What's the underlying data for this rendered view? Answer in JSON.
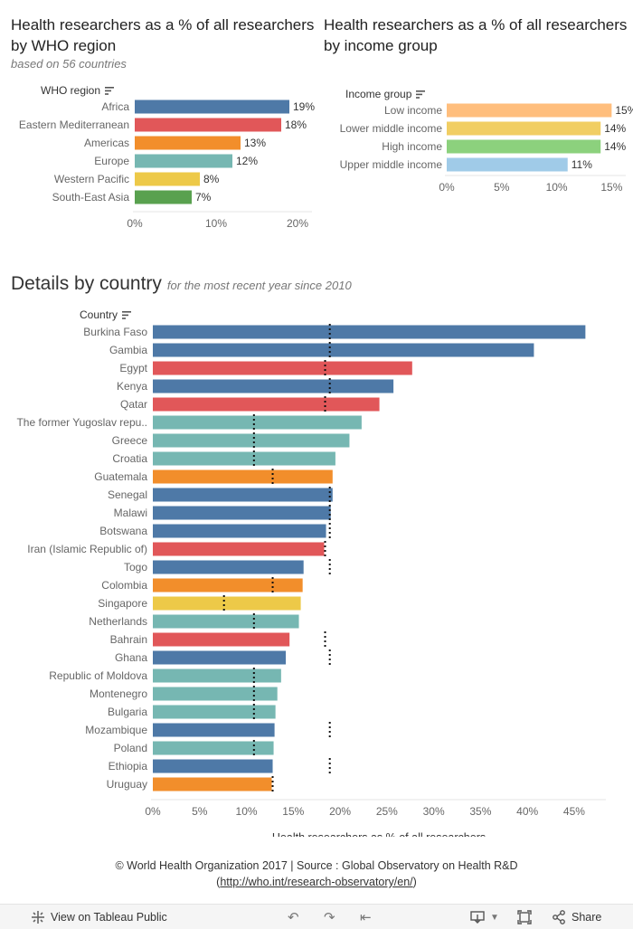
{
  "region_panel": {
    "title_line1": "Health researchers as a % of all researchers",
    "title_line2": "by WHO region",
    "subtitle": "based on 56 countries",
    "header": "WHO region"
  },
  "income_panel": {
    "title_line1": "Health researchers as a % of all researchers",
    "title_line2": "by income group",
    "header": "Income group"
  },
  "country_panel": {
    "title": "Details by country",
    "subtitle": "for the most recent year since 2010",
    "header": "Country"
  },
  "footer": {
    "line1": "© World Health Organization 2017 | Source : Global Observatory on Health R&D",
    "link": "http://who.int/research-observatory/en/",
    "open_paren": "(",
    "close_paren": ")"
  },
  "toolbar": {
    "view_label": "View on Tableau Public",
    "share_label": "Share"
  },
  "colors": {
    "Africa": "#4e79a7",
    "Eastern Mediterranean": "#e15759",
    "Americas": "#f28e2b",
    "Europe": "#76b7b2",
    "Western Pacific": "#edc948",
    "South-East Asia": "#59a14f",
    "Low income": "#ffbe7d",
    "Lower middle income": "#f1ce63",
    "High income": "#8cd17d",
    "Upper middle income": "#a0cbe8"
  },
  "chart_data": [
    {
      "type": "bar",
      "orientation": "horizontal",
      "categories": [
        "Africa",
        "Eastern Mediterranean",
        "Americas",
        "Europe",
        "Western Pacific",
        "South-East Asia"
      ],
      "values": [
        19,
        18,
        13,
        12,
        8,
        7
      ],
      "value_labels": [
        "19%",
        "18%",
        "13%",
        "12%",
        "8%",
        "7%"
      ],
      "xlim": [
        0,
        26
      ],
      "xticks": [
        0,
        10,
        20
      ],
      "xtick_labels": [
        "0%",
        "10%",
        "20%"
      ],
      "grid": false
    },
    {
      "type": "bar",
      "orientation": "horizontal",
      "categories": [
        "Low income",
        "Lower middle income",
        "High income",
        "Upper middle income"
      ],
      "values": [
        15,
        14,
        14,
        11
      ],
      "value_labels": [
        "15%",
        "14%",
        "14%",
        "11%"
      ],
      "xlim": [
        0,
        19
      ],
      "xticks": [
        0,
        5,
        10,
        15
      ],
      "xtick_labels": [
        "0%",
        "5%",
        "10%",
        "15%"
      ],
      "grid": false
    },
    {
      "type": "bar",
      "orientation": "horizontal",
      "xlabel": "Health researchers  as % of all researchers",
      "xlim": [
        0,
        48
      ],
      "xticks": [
        0,
        5,
        10,
        15,
        20,
        25,
        30,
        35,
        40,
        45
      ],
      "xtick_labels": [
        "0%",
        "5%",
        "10%",
        "15%",
        "20%",
        "25%",
        "30%",
        "35%",
        "40%",
        "45%"
      ],
      "grid": false,
      "reference_line": "dotted line at the country's WHO region average",
      "categories": [
        "Burkina Faso",
        "Gambia",
        "Egypt",
        "Kenya",
        "Qatar",
        "The former Yugoslav repu..",
        "Greece",
        "Croatia",
        "Guatemala",
        "Senegal",
        "Malawi",
        "Botswana",
        "Iran (Islamic Republic of)",
        "Togo",
        "Colombia",
        "Singapore",
        "Netherlands",
        "Bahrain",
        "Ghana",
        "Republic of Moldova",
        "Montenegro",
        "Bulgaria",
        "Mozambique",
        "Poland",
        "Ethiopia",
        "Uruguay"
      ],
      "values": [
        46.2,
        40.7,
        27.7,
        25.7,
        24.2,
        22.3,
        21.0,
        19.5,
        19.2,
        19.2,
        19.0,
        18.5,
        18.3,
        16.1,
        16.0,
        15.8,
        15.6,
        14.6,
        14.2,
        13.7,
        13.3,
        13.1,
        13.0,
        12.9,
        12.8,
        12.7
      ],
      "regions": [
        "Africa",
        "Africa",
        "Eastern Mediterranean",
        "Africa",
        "Eastern Mediterranean",
        "Europe",
        "Europe",
        "Europe",
        "Americas",
        "Africa",
        "Africa",
        "Africa",
        "Eastern Mediterranean",
        "Africa",
        "Americas",
        "Western Pacific",
        "Europe",
        "Eastern Mediterranean",
        "Africa",
        "Europe",
        "Europe",
        "Europe",
        "Africa",
        "Europe",
        "Africa",
        "Americas"
      ],
      "reference_values": [
        18.9,
        18.9,
        18.4,
        18.9,
        18.4,
        10.8,
        10.8,
        10.8,
        12.8,
        18.9,
        18.9,
        18.9,
        18.4,
        18.9,
        12.8,
        7.6,
        10.8,
        18.4,
        18.9,
        10.8,
        10.8,
        10.8,
        18.9,
        10.8,
        18.9,
        12.8
      ]
    }
  ]
}
